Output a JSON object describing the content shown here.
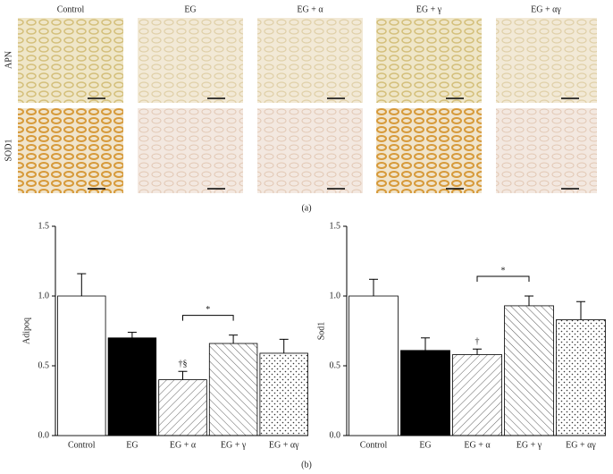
{
  "panel_a": {
    "columns": [
      "Control",
      "EG",
      "EG + α",
      "EG + γ",
      "EG + αγ"
    ],
    "rows": [
      "APN",
      "SOD1"
    ],
    "label": "(a)"
  },
  "panel_b_label": "(b)",
  "chart_data": [
    {
      "type": "bar",
      "y_label": "Adipoq",
      "categories": [
        "Control",
        "EG",
        "EG + α",
        "EG + γ",
        "EG + αγ"
      ],
      "values": [
        1.0,
        0.7,
        0.4,
        0.66,
        0.59
      ],
      "errors": [
        0.16,
        0.04,
        0.06,
        0.06,
        0.1
      ],
      "fills": [
        "white",
        "black",
        "hatch-right",
        "hatch-left",
        "dots"
      ],
      "ylim": [
        0,
        1.5
      ],
      "yticks": [
        {
          "value": 0,
          "label": "0.0"
        },
        0.5,
        {
          "value": 1,
          "label": "1.0"
        },
        1.5
      ],
      "annotations": [
        {
          "text": "†§",
          "category": 2
        }
      ],
      "brackets": [
        {
          "text": "*",
          "from": 2,
          "to": 3
        }
      ]
    },
    {
      "type": "bar",
      "y_label": "Sod1",
      "categories": [
        "Control",
        "EG",
        "EG + α",
        "EG + γ",
        "EG + αγ"
      ],
      "values": [
        1.0,
        0.61,
        0.58,
        0.93,
        0.83
      ],
      "errors": [
        0.12,
        0.09,
        0.04,
        0.07,
        0.13
      ],
      "fills": [
        "white",
        "black",
        "hatch-right",
        "hatch-left",
        "dots"
      ],
      "ylim": [
        0,
        1.5
      ],
      "yticks": [
        {
          "value": 0,
          "label": "0.0"
        },
        0.5,
        {
          "value": 1,
          "label": "1.0"
        },
        1.5
      ],
      "annotations": [
        {
          "text": "†",
          "category": 2
        }
      ],
      "brackets": [
        {
          "text": "*",
          "from": 2,
          "to": 3
        }
      ]
    }
  ]
}
